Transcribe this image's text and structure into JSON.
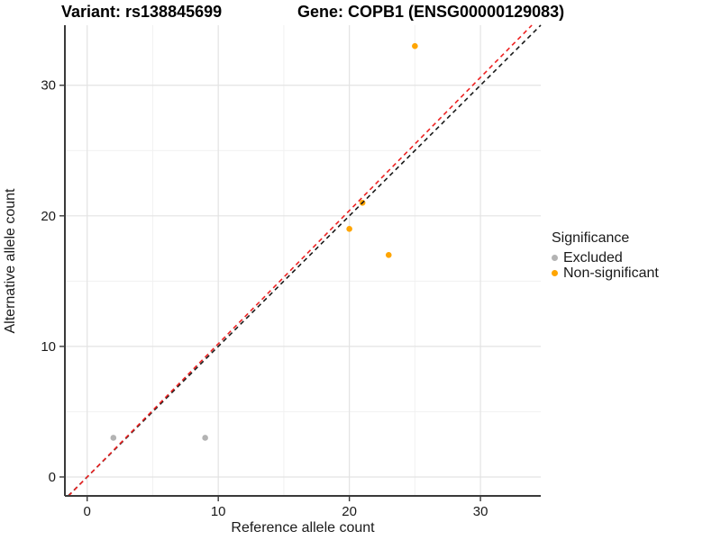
{
  "chart_data": {
    "type": "scatter",
    "title_left": "Variant: rs138845699",
    "title_right": "Gene: COPB1 (ENSG00000129083)",
    "xlabel": "Reference allele count",
    "ylabel": "Alternative allele count",
    "xlim": [
      -1.7,
      34.6
    ],
    "ylim": [
      -1.45,
      34.6
    ],
    "x_ticks": [
      0,
      10,
      20,
      30
    ],
    "y_ticks": [
      0,
      10,
      20,
      30
    ],
    "x_minor_ticks": [
      5,
      15,
      25
    ],
    "y_minor_ticks": [
      5,
      15,
      25
    ],
    "grid": "major+minor",
    "legend_position": "right",
    "legend_title": "Significance",
    "series": [
      {
        "name": "Excluded",
        "color": "#B3B3B3",
        "points": [
          [
            2,
            3
          ],
          [
            9,
            3
          ]
        ]
      },
      {
        "name": "Non-significant",
        "color": "#FFA500",
        "points": [
          [
            20,
            19
          ],
          [
            21,
            21
          ],
          [
            23,
            17
          ],
          [
            25,
            33
          ]
        ]
      }
    ],
    "ref_lines": [
      {
        "name": "identity-line",
        "slope": 1.0,
        "intercept": 0,
        "color": "#1A1A1A",
        "style": "dashed"
      },
      {
        "name": "expected-ratio-line",
        "slope": 1.02,
        "intercept": 0,
        "color": "#EE2222",
        "style": "dashed"
      }
    ],
    "colors": {
      "grid_major": "#E3E3E3",
      "grid_minor": "#F1F1F1",
      "axis_line": "#3A3A3A",
      "background": "#FFFFFF"
    }
  }
}
